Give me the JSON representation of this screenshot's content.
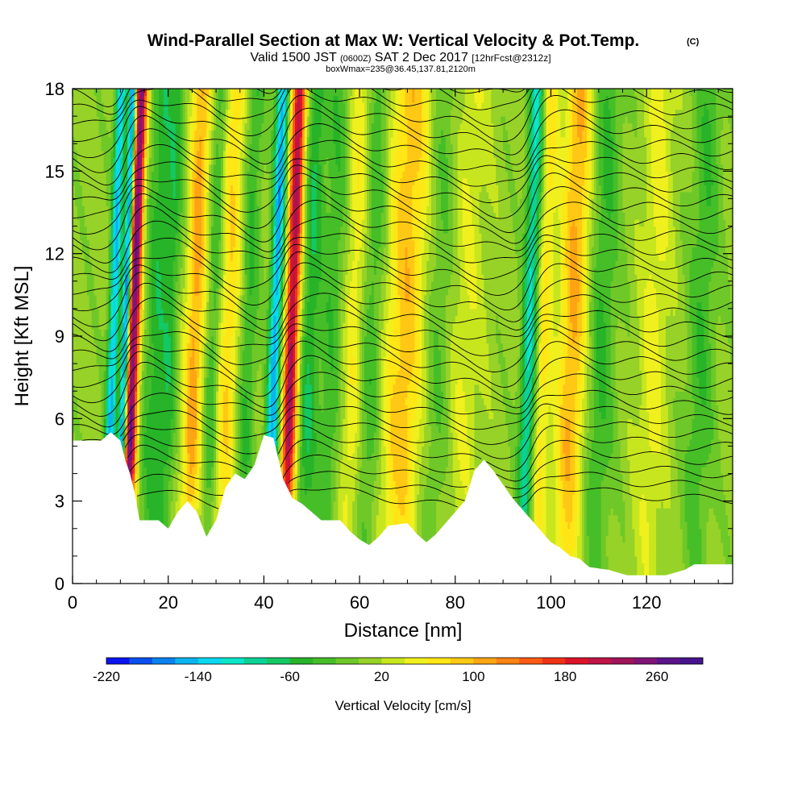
{
  "header": {
    "title": "Wind-Parallel Section at Max W: Vertical Velocity & Pot.Temp.",
    "copyright": "(C)",
    "valid_prefix": "Valid 1500 JST",
    "valid_utc": "(0600Z)",
    "valid_date": "SAT 2 Dec 2017",
    "forecast": "[12hrFcst@2312z]",
    "box_info": "boxWmax=235@36.45,137.81,2120m"
  },
  "chart_data": {
    "type": "heatmap",
    "title": "Wind-Parallel Section at Max W: Vertical Velocity & Pot.Temp.",
    "xlabel": "Distance [nm]",
    "ylabel": "Height [Kft MSL]",
    "xlim": [
      0,
      138
    ],
    "ylim": [
      0,
      18
    ],
    "xticks": [
      0,
      20,
      40,
      60,
      80,
      100,
      120
    ],
    "yticks": [
      0,
      3,
      6,
      9,
      12,
      15,
      18
    ],
    "colorbar": {
      "label": "Vertical Velocity [cm/s]",
      "tick_labels": [
        "-220",
        "-140",
        "-60",
        "20",
        "100",
        "180",
        "260"
      ],
      "tick_values": [
        -220,
        -140,
        -60,
        20,
        100,
        180,
        260
      ],
      "range": [
        -220,
        300
      ],
      "colors": [
        "#0a14f0",
        "#0a50f0",
        "#0a82f0",
        "#0ab4f0",
        "#0ad7f0",
        "#0ae6c8",
        "#0ad296",
        "#14c864",
        "#28b428",
        "#46be28",
        "#6ec828",
        "#96d228",
        "#c8e61e",
        "#f0f01e",
        "#ffe614",
        "#ffc814",
        "#ffa514",
        "#ff8214",
        "#ff5a14",
        "#f03214",
        "#dc1428",
        "#be1446",
        "#a0145a",
        "#821478",
        "#5a148c",
        "#46148c"
      ]
    },
    "terrain_kft": [
      [
        0,
        5.2
      ],
      [
        6,
        5.2
      ],
      [
        8,
        5.5
      ],
      [
        10,
        5.2
      ],
      [
        11,
        4.5
      ],
      [
        12,
        4.0
      ],
      [
        13,
        3.3
      ],
      [
        14,
        2.3
      ],
      [
        18,
        2.3
      ],
      [
        20,
        2.0
      ],
      [
        22,
        2.6
      ],
      [
        24,
        3.0
      ],
      [
        26,
        2.6
      ],
      [
        28,
        1.7
      ],
      [
        30,
        2.3
      ],
      [
        32,
        3.5
      ],
      [
        34,
        4.0
      ],
      [
        36,
        3.8
      ],
      [
        38,
        4.3
      ],
      [
        40,
        5.4
      ],
      [
        42,
        5.3
      ],
      [
        44,
        3.8
      ],
      [
        46,
        3.1
      ],
      [
        48,
        2.9
      ],
      [
        50,
        2.6
      ],
      [
        52,
        2.3
      ],
      [
        56,
        2.3
      ],
      [
        58,
        1.9
      ],
      [
        60,
        1.6
      ],
      [
        62,
        1.4
      ],
      [
        64,
        1.7
      ],
      [
        66,
        2.1
      ],
      [
        70,
        2.2
      ],
      [
        72,
        1.8
      ],
      [
        74,
        1.5
      ],
      [
        76,
        1.8
      ],
      [
        78,
        2.2
      ],
      [
        82,
        3.0
      ],
      [
        84,
        4.1
      ],
      [
        86,
        4.5
      ],
      [
        88,
        4.1
      ],
      [
        90,
        3.6
      ],
      [
        92,
        3.1
      ],
      [
        94,
        2.7
      ],
      [
        96,
        2.3
      ],
      [
        98,
        1.9
      ],
      [
        100,
        1.5
      ],
      [
        102,
        1.3
      ],
      [
        104,
        1.0
      ],
      [
        106,
        0.9
      ],
      [
        108,
        0.6
      ],
      [
        112,
        0.5
      ],
      [
        116,
        0.3
      ],
      [
        122,
        0.3
      ],
      [
        124,
        0.3
      ],
      [
        126,
        0.4
      ],
      [
        128,
        0.5
      ],
      [
        130,
        0.7
      ],
      [
        136,
        0.7
      ],
      [
        138,
        0.7
      ]
    ],
    "vertical_velocity_bands": [
      {
        "x": 8.0,
        "w": 1.1,
        "amp": -150
      },
      {
        "x": 10.5,
        "w": 0.8,
        "amp": -200
      },
      {
        "x": 12.2,
        "w": 1.3,
        "amp": 255
      },
      {
        "x": 17.0,
        "w": 2.5,
        "amp": -60
      },
      {
        "x": 20.0,
        "w": 1.5,
        "amp": -45
      },
      {
        "x": 25.0,
        "w": 2.0,
        "amp": 100
      },
      {
        "x": 29.0,
        "w": 1.6,
        "amp": -60
      },
      {
        "x": 32.0,
        "w": 2.8,
        "amp": 70
      },
      {
        "x": 36.0,
        "w": 2.0,
        "amp": -55
      },
      {
        "x": 41.8,
        "w": 1.3,
        "amp": -160
      },
      {
        "x": 45.3,
        "w": 1.5,
        "amp": 215
      },
      {
        "x": 49.0,
        "w": 1.8,
        "amp": -60
      },
      {
        "x": 54.0,
        "w": 3.5,
        "amp": -45
      },
      {
        "x": 58.0,
        "w": 2.5,
        "amp": 60
      },
      {
        "x": 62.0,
        "w": 2.5,
        "amp": -50
      },
      {
        "x": 69.0,
        "w": 4.5,
        "amp": 85
      },
      {
        "x": 76.0,
        "w": 3.5,
        "amp": -40
      },
      {
        "x": 81.0,
        "w": 4.0,
        "amp": 35
      },
      {
        "x": 95.0,
        "w": 1.6,
        "amp": -110
      },
      {
        "x": 98.0,
        "w": 1.6,
        "amp": 60
      },
      {
        "x": 104.0,
        "w": 3.0,
        "amp": 95
      },
      {
        "x": 110.0,
        "w": 3.0,
        "amp": -50
      },
      {
        "x": 121.0,
        "w": 3.0,
        "amp": 40
      },
      {
        "x": 131.0,
        "w": 3.0,
        "amp": -45
      }
    ],
    "potential_temperature": {
      "contour_count": 34,
      "level_range_kft": [
        3.0,
        18.5
      ],
      "wave_centers_nm": [
        11,
        44,
        96
      ],
      "wave_amplitude_kft": 1.1
    }
  }
}
